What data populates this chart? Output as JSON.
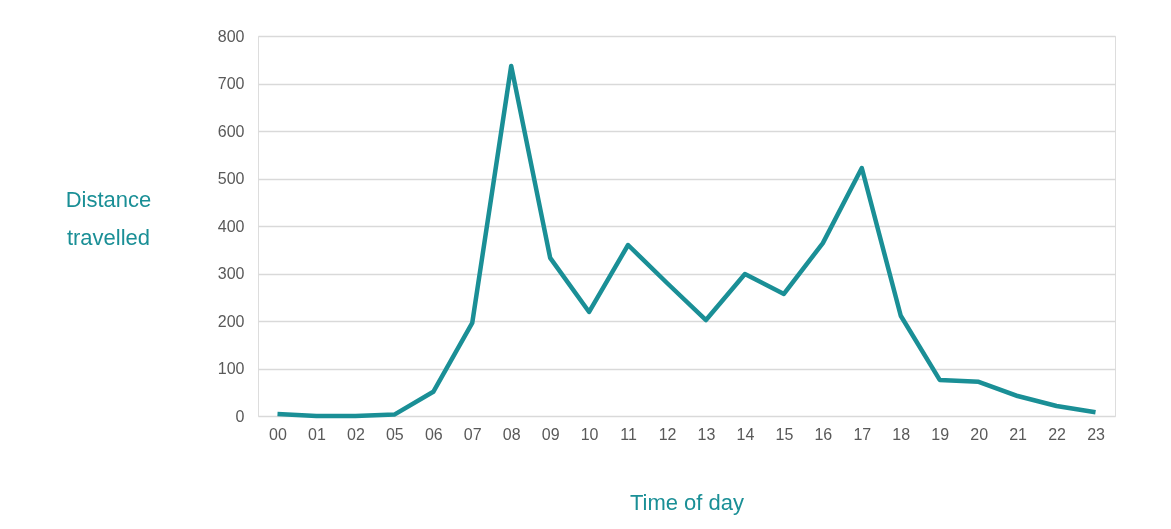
{
  "chart_data": {
    "type": "line",
    "xlabel": "Time of day",
    "ylabel": "Distance travelled",
    "categories": [
      "00",
      "01",
      "02",
      "05",
      "06",
      "07",
      "08",
      "09",
      "10",
      "11",
      "12",
      "13",
      "14",
      "15",
      "16",
      "17",
      "18",
      "19",
      "20",
      "21",
      "22",
      "23"
    ],
    "series": [
      {
        "color": "#1a8f96",
        "values": [
          4,
          0,
          0,
          3,
          51,
          196,
          737,
          333,
          219,
          360,
          280,
          202,
          299,
          257,
          364,
          522,
          211,
          76,
          72,
          42,
          21,
          8
        ]
      }
    ],
    "ylim": [
      0,
      800
    ],
    "yticks": [
      0,
      100,
      200,
      300,
      400,
      500,
      600,
      700,
      800
    ],
    "grid": "y",
    "legend": false,
    "marker": "none",
    "line_style": "solid"
  }
}
